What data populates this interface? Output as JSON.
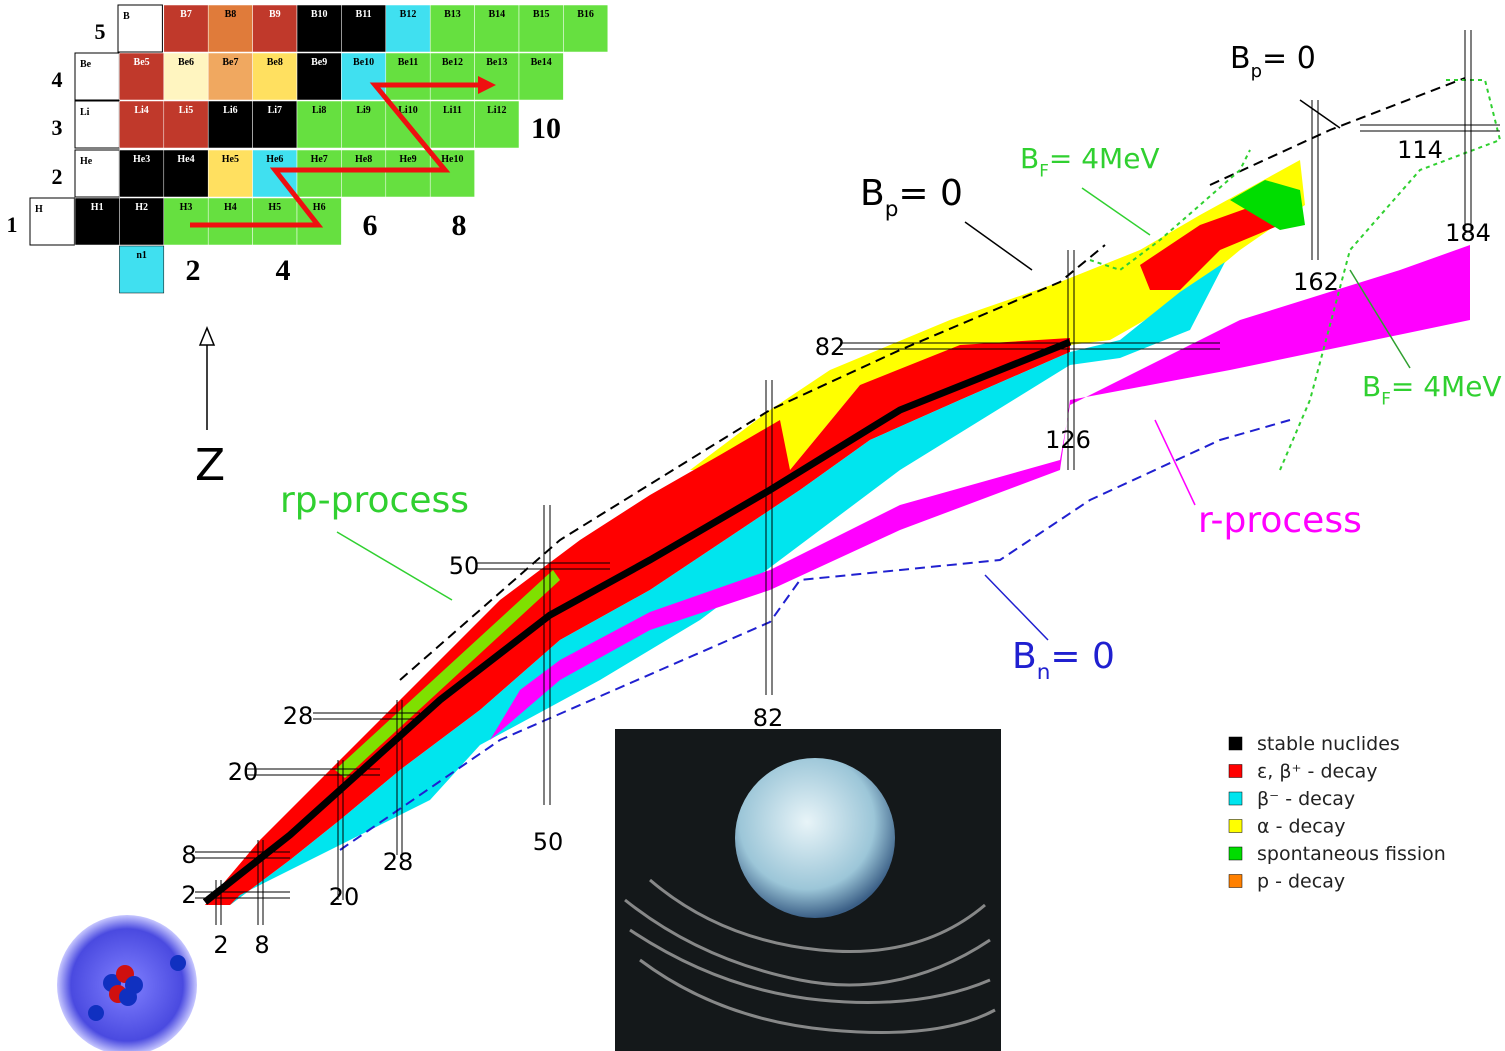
{
  "inset": {
    "rows": [
      {
        "z": "5",
        "element": "B",
        "cells": [
          {
            "name": "B7",
            "color": "#c0392b"
          },
          {
            "name": "B8",
            "color": "#e07b3a"
          },
          {
            "name": "B9",
            "color": "#c0392b"
          },
          {
            "name": "B10",
            "color": "#000000"
          },
          {
            "name": "B11",
            "color": "#000000"
          },
          {
            "name": "B12",
            "color": "#40e0f0"
          },
          {
            "name": "B13",
            "color": "#66e040"
          },
          {
            "name": "B14",
            "color": "#66e040"
          },
          {
            "name": "B15",
            "color": "#66e040"
          },
          {
            "name": "B16",
            "color": "#66e040"
          }
        ]
      },
      {
        "z": "4",
        "element": "Be",
        "cells": [
          {
            "name": "Be5",
            "color": "#c0392b"
          },
          {
            "name": "Be6",
            "color": "#fff5c0"
          },
          {
            "name": "Be7",
            "color": "#f0a860"
          },
          {
            "name": "Be8",
            "color": "#ffe060"
          },
          {
            "name": "Be9",
            "color": "#000000"
          },
          {
            "name": "Be10",
            "color": "#40e0f0"
          },
          {
            "name": "Be11",
            "color": "#66e040"
          },
          {
            "name": "Be12",
            "color": "#66e040"
          },
          {
            "name": "Be13",
            "color": "#66e040"
          },
          {
            "name": "Be14",
            "color": "#66e040"
          }
        ]
      },
      {
        "z": "3",
        "element": "Li",
        "cells": [
          {
            "name": "Li4",
            "color": "#c0392b"
          },
          {
            "name": "Li5",
            "color": "#c0392b"
          },
          {
            "name": "Li6",
            "color": "#000000"
          },
          {
            "name": "Li7",
            "color": "#000000"
          },
          {
            "name": "Li8",
            "color": "#66e040"
          },
          {
            "name": "Li9",
            "color": "#66e040"
          },
          {
            "name": "Li10",
            "color": "#66e040"
          },
          {
            "name": "Li11",
            "color": "#66e040"
          },
          {
            "name": "Li12",
            "color": "#66e040"
          }
        ]
      },
      {
        "z": "2",
        "element": "He",
        "cells": [
          {
            "name": "He3",
            "color": "#000000"
          },
          {
            "name": "He4",
            "color": "#000000"
          },
          {
            "name": "He5",
            "color": "#ffe060"
          },
          {
            "name": "He6",
            "color": "#40e0f0"
          },
          {
            "name": "He7",
            "color": "#66e040"
          },
          {
            "name": "He8",
            "color": "#66e040"
          },
          {
            "name": "He9",
            "color": "#66e040"
          },
          {
            "name": "He10",
            "color": "#66e040"
          }
        ]
      },
      {
        "z": "1",
        "element": "H",
        "cells": [
          {
            "name": "H1",
            "color": "#000000"
          },
          {
            "name": "H2",
            "color": "#000000"
          },
          {
            "name": "H3",
            "color": "#66e040"
          },
          {
            "name": "H4",
            "color": "#66e040"
          },
          {
            "name": "H5",
            "color": "#66e040"
          },
          {
            "name": "H6",
            "color": "#66e040"
          }
        ]
      }
    ],
    "neutron": {
      "name": "n1",
      "color": "#40e0f0"
    },
    "n_labels": [
      "2",
      "4",
      "6",
      "8",
      "10"
    ]
  },
  "labels": {
    "bp_main": {
      "main": "B",
      "sub": "p",
      "tail": "= 0"
    },
    "bp_top": {
      "main": "B",
      "sub": "p",
      "tail": "= 0"
    },
    "bf_top": {
      "main": "B",
      "sub": "F",
      "tail": "= 4MeV"
    },
    "bf_right": {
      "main": "B",
      "sub": "F",
      "tail": "= 4MeV"
    },
    "bn": {
      "main": "B",
      "sub": "n",
      "tail": "= 0"
    },
    "rp": "rp-process",
    "r": "r-process",
    "z_axis": "Z"
  },
  "magic_n": [
    "2",
    "8",
    "20",
    "28",
    "50",
    "82",
    "126",
    "162",
    "184"
  ],
  "magic_z": [
    "2",
    "8",
    "20",
    "28",
    "50",
    "82",
    "114"
  ],
  "legend": [
    {
      "label": "stable nuclides",
      "color": "#000000"
    },
    {
      "label": "ε, β⁺ - decay",
      "color": "#ff0000"
    },
    {
      "label": "β⁻ - decay",
      "color": "#00e5ee"
    },
    {
      "label": "α - decay",
      "color": "#ffff00"
    },
    {
      "label": "spontaneous fission",
      "color": "#00dd00"
    },
    {
      "label": "p - decay",
      "color": "#ff8000"
    }
  ]
}
